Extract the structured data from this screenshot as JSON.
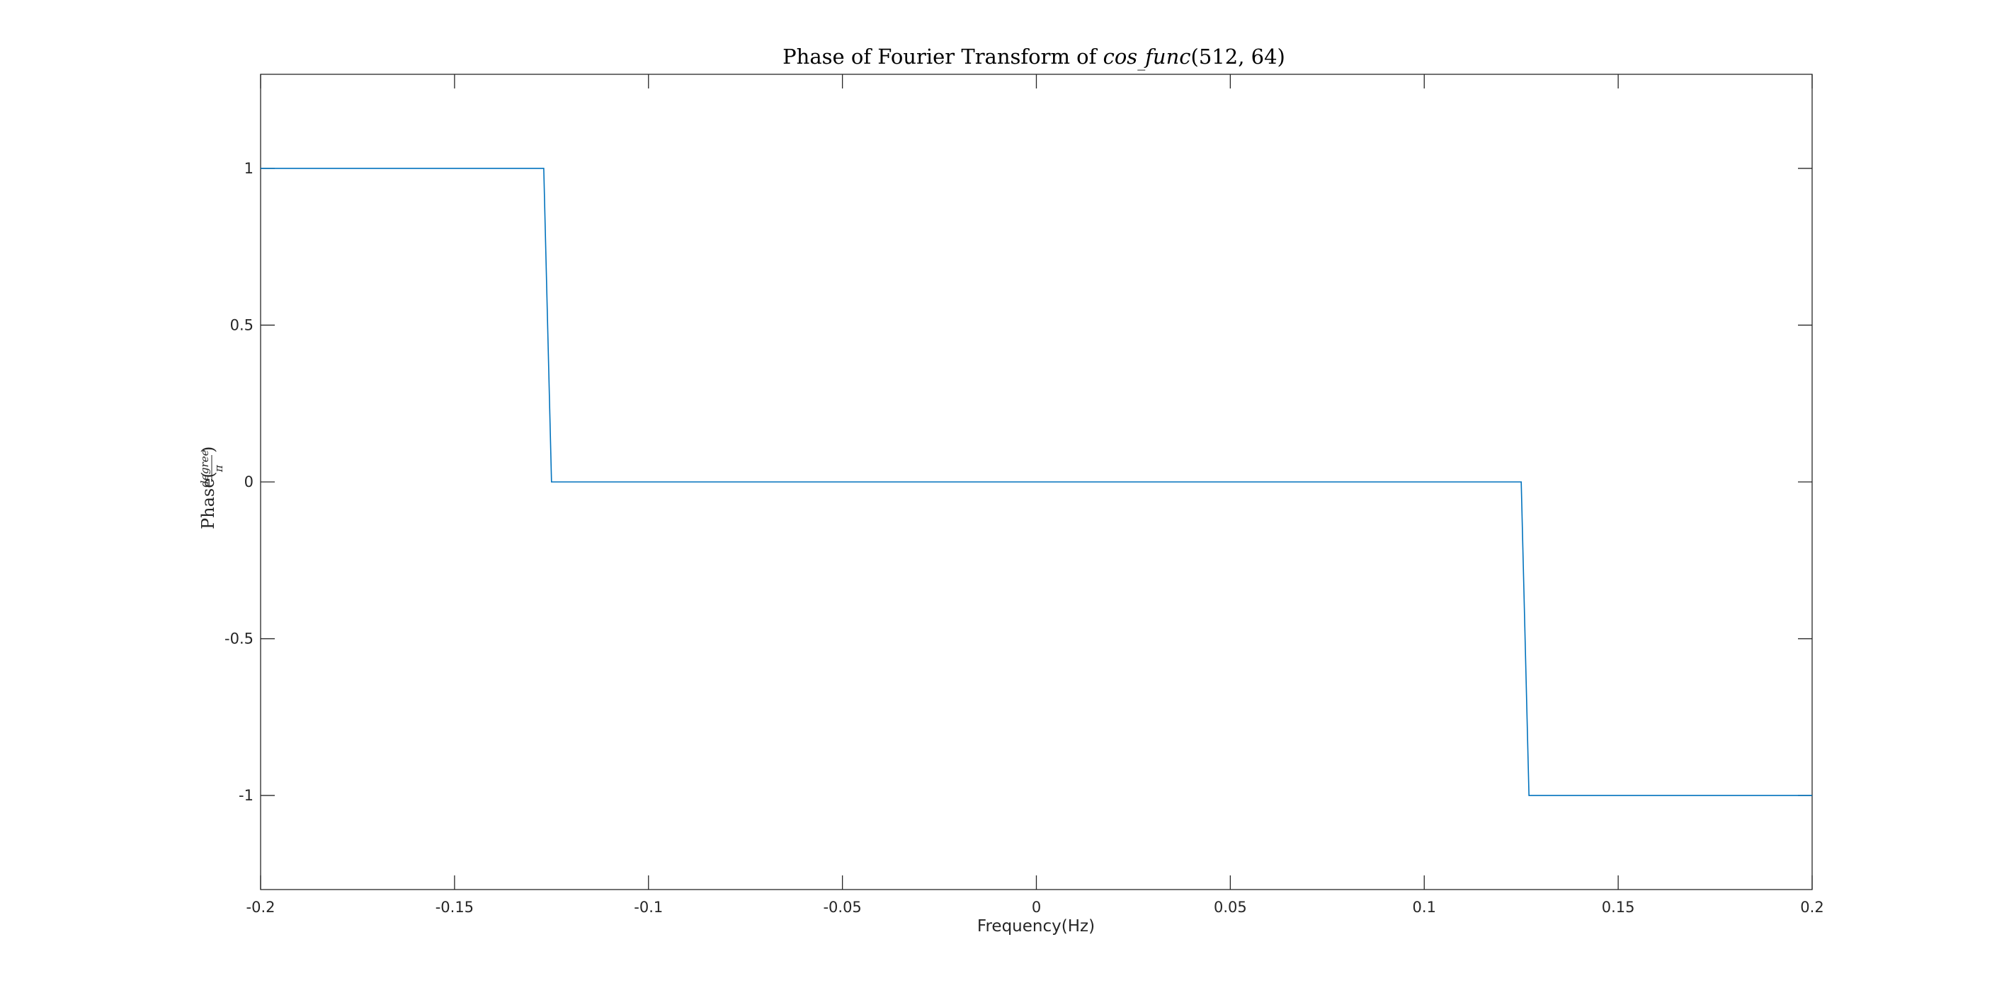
{
  "chart_data": {
    "type": "line",
    "title_parts": {
      "prefix": "Phase of Fourier Transform of ",
      "func_a": "cos",
      "func_sep": "_",
      "func_b": "func",
      "args": "(512, 64)"
    },
    "xlabel": "Frequency(Hz)",
    "ylabel_parts": {
      "prefix": "Phase(",
      "numerator": "degree",
      "denominator": "π",
      "suffix": ")"
    },
    "xlim": [
      -0.2,
      0.2
    ],
    "ylim": [
      -1.3,
      1.3
    ],
    "xticks": [
      -0.2,
      -0.15,
      -0.1,
      -0.05,
      0,
      0.05,
      0.1,
      0.15,
      0.2
    ],
    "xtick_labels": [
      "-0.2",
      "-0.15",
      "-0.1",
      "-0.05",
      "0",
      "0.05",
      "0.1",
      "0.15",
      "0.2"
    ],
    "yticks": [
      -1,
      -0.5,
      0,
      0.5,
      1
    ],
    "ytick_labels": [
      "-1",
      "-0.5",
      "0",
      "0.5",
      "1"
    ],
    "grid": false,
    "series": [
      {
        "color": "#0072bd",
        "x": [
          -0.2,
          -0.127,
          -0.125,
          0,
          0.125,
          0.127,
          0.2
        ],
        "y": [
          1,
          1,
          0,
          0,
          0,
          -1,
          -1
        ]
      }
    ]
  }
}
